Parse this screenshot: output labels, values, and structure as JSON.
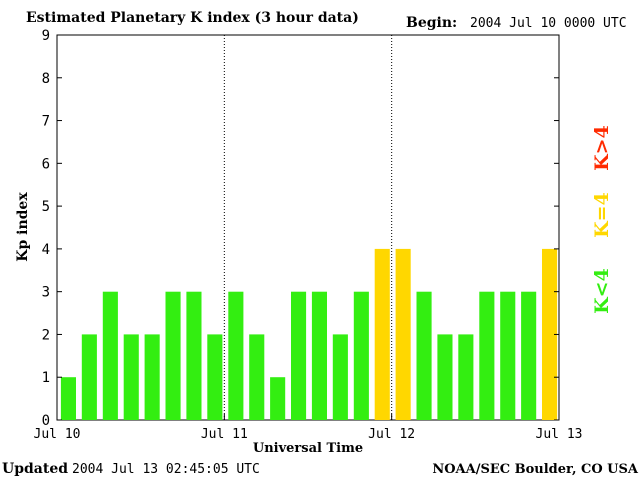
{
  "header": {
    "title": "Estimated Planetary K index (3 hour data)",
    "begin_label": "Begin:",
    "begin_value": "2004 Jul 10 0000 UTC"
  },
  "footer": {
    "updated_label": "Updated",
    "updated_value": "2004 Jul 13 02:45:05 UTC",
    "source": "NOAA/SEC Boulder, CO USA"
  },
  "legend": {
    "high": {
      "label": "K>4",
      "color": "#ff2a00"
    },
    "equal": {
      "label": "K=4",
      "color": "#ffd700"
    },
    "low": {
      "label": "K<4",
      "color": "#33ee11"
    }
  },
  "chart_data": {
    "type": "bar",
    "title": "Estimated Planetary K index (3 hour data)",
    "xlabel": "Universal Time",
    "ylabel": "Kp index",
    "ylim": [
      0,
      9
    ],
    "yticks": [
      "0",
      "1",
      "2",
      "3",
      "4",
      "5",
      "6",
      "7",
      "8",
      "9"
    ],
    "xticks": [
      "Jul 10",
      "Jul 11",
      "Jul 12",
      "Jul 13"
    ],
    "interval_hours": 3,
    "values": [
      1,
      2,
      3,
      2,
      2,
      3,
      3,
      2,
      3,
      2,
      1,
      3,
      3,
      2,
      3,
      4,
      4,
      3,
      2,
      2,
      3,
      3,
      3,
      4
    ],
    "grid": false,
    "day_separators": true,
    "legend_position": "right"
  }
}
